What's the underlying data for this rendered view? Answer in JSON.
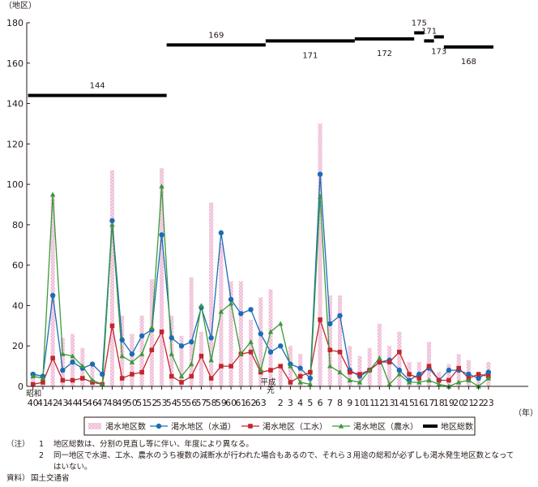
{
  "chart_data": {
    "type": "bar+line",
    "ylabel": "（地区）",
    "xunit": "（年）",
    "ylim": [
      0,
      180
    ],
    "yticks": [
      0,
      20,
      40,
      60,
      80,
      100,
      120,
      140,
      160,
      180
    ],
    "grid": false,
    "legend_position": "bottom",
    "era_labels": [
      {
        "text": "昭和",
        "at_category": "40"
      },
      {
        "text": "平成",
        "at_category": "元"
      }
    ],
    "categories": [
      "40",
      "41",
      "42",
      "43",
      "44",
      "45",
      "46",
      "47",
      "48",
      "49",
      "50",
      "51",
      "52",
      "53",
      "54",
      "55",
      "56",
      "57",
      "58",
      "59",
      "60",
      "61",
      "62",
      "63",
      "元",
      "2",
      "3",
      "4",
      "5",
      "6",
      "7",
      "8",
      "9",
      "10",
      "11",
      "12",
      "13",
      "14",
      "15",
      "16",
      "17",
      "18",
      "19",
      "20",
      "21",
      "22",
      "23"
    ],
    "series": [
      {
        "name": "渇水地区数",
        "type": "bar",
        "color": "#e9a7c9",
        "values": [
          6,
          6,
          95,
          24,
          26,
          19,
          10,
          2,
          107,
          35,
          26,
          35,
          53,
          108,
          35,
          25,
          54,
          27,
          91,
          71,
          52,
          52,
          33,
          44,
          48,
          11,
          20,
          16,
          7,
          130,
          45,
          45,
          20,
          15,
          19,
          31,
          20,
          27,
          12,
          12,
          22,
          7,
          11,
          16,
          13,
          5,
          12
        ]
      },
      {
        "name": "渇水地区（水道）",
        "type": "line",
        "color": "#1a6db5",
        "marker": "circle",
        "values": [
          6,
          5,
          45,
          8,
          12,
          9,
          11,
          6,
          82,
          23,
          16,
          25,
          28,
          75,
          24,
          20,
          22,
          39,
          24,
          76,
          43,
          36,
          38,
          26,
          17,
          20,
          11,
          9,
          4,
          105,
          31,
          35,
          8,
          5,
          8,
          12,
          13,
          8,
          3,
          6,
          9,
          3,
          8,
          8,
          6,
          4,
          7
        ]
      },
      {
        "name": "渇水地区（工水）",
        "type": "line",
        "color": "#c1272d",
        "marker": "square",
        "values": [
          1,
          2,
          14,
          3,
          3,
          4,
          2,
          1,
          30,
          4,
          6,
          7,
          18,
          27,
          5,
          2,
          5,
          15,
          4,
          10,
          10,
          16,
          17,
          7,
          8,
          10,
          2,
          5,
          7,
          33,
          18,
          17,
          7,
          6,
          8,
          12,
          12,
          17,
          6,
          4,
          10,
          3,
          3,
          9,
          4,
          6,
          5
        ]
      },
      {
        "name": "渇水地区（農水）",
        "type": "line",
        "color": "#3a9a3a",
        "marker": "triangle",
        "values": [
          5,
          4,
          95,
          16,
          15,
          10,
          3,
          1,
          80,
          15,
          12,
          16,
          29,
          99,
          16,
          5,
          11,
          40,
          13,
          37,
          41,
          16,
          22,
          8,
          27,
          31,
          10,
          2,
          1,
          94,
          10,
          7,
          3,
          2,
          8,
          14,
          1,
          6,
          2,
          2,
          3,
          1,
          0,
          2,
          3,
          0,
          4
        ]
      }
    ],
    "district_totals": {
      "name": "地区総数",
      "color": "#000000",
      "segments": [
        {
          "value": 144,
          "start": "40",
          "end": "53"
        },
        {
          "value": 169,
          "start": "54",
          "end": "63"
        },
        {
          "value": 171,
          "start": "元",
          "end": "9"
        },
        {
          "value": 172,
          "start": "10",
          "end": "15"
        },
        {
          "value": 175,
          "start": "16",
          "end": "16"
        },
        {
          "value": 171,
          "start": "17",
          "end": "17"
        },
        {
          "value": 173,
          "start": "18",
          "end": "18"
        },
        {
          "value": 168,
          "start": "19",
          "end": "23"
        }
      ]
    }
  },
  "notes": {
    "label": "（注）",
    "items": [
      {
        "num": "1",
        "text": "地区総数は、分割の見直し等に伴い、年度により異なる。"
      },
      {
        "num": "2",
        "text": "同一地区で水道、工水、農水のうち複数の減断水が行われた場合もあるので、それら３用途の総和が必ずしも渇水発生地区数となって"
      },
      {
        "num": "",
        "text": "はいない。"
      }
    ]
  },
  "source": {
    "label": "資料）",
    "text": "国土交通省"
  }
}
